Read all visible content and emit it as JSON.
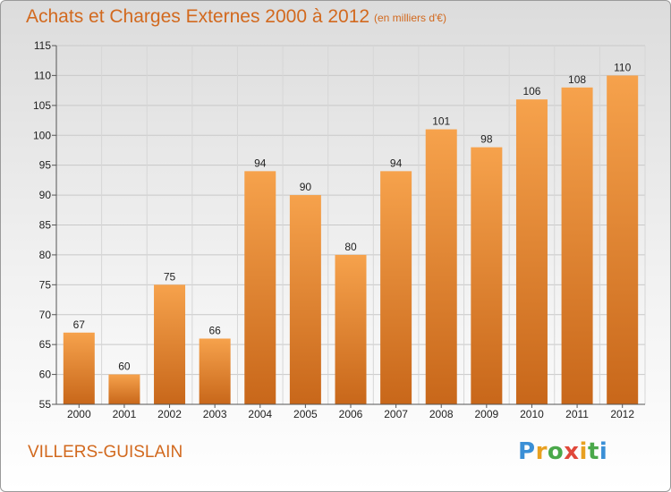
{
  "header": {
    "title": "Achats et Charges Externes 2000 à 2012",
    "unit": "(en milliers d'€)"
  },
  "footer": {
    "town": "VILLERS-GUISLAIN",
    "logo": "Proxiti"
  },
  "chart_data": {
    "type": "bar",
    "title": "Achats et Charges Externes 2000 à 2012",
    "subtitle": "(en milliers d'€)",
    "categories": [
      "2000",
      "2001",
      "2002",
      "2003",
      "2004",
      "2005",
      "2006",
      "2007",
      "2008",
      "2009",
      "2010",
      "2011",
      "2012"
    ],
    "values": [
      67,
      60,
      75,
      66,
      94,
      90,
      80,
      94,
      101,
      98,
      106,
      108,
      110
    ],
    "ylim": [
      55,
      115
    ],
    "yticks": [
      55,
      60,
      65,
      70,
      75,
      80,
      85,
      90,
      95,
      100,
      105,
      110,
      115
    ],
    "grid": true,
    "legend": "none",
    "colors": {
      "bar_light": "#f6a24c",
      "bar_dark": "#c8671a",
      "text_accent": "#d2691e"
    }
  }
}
